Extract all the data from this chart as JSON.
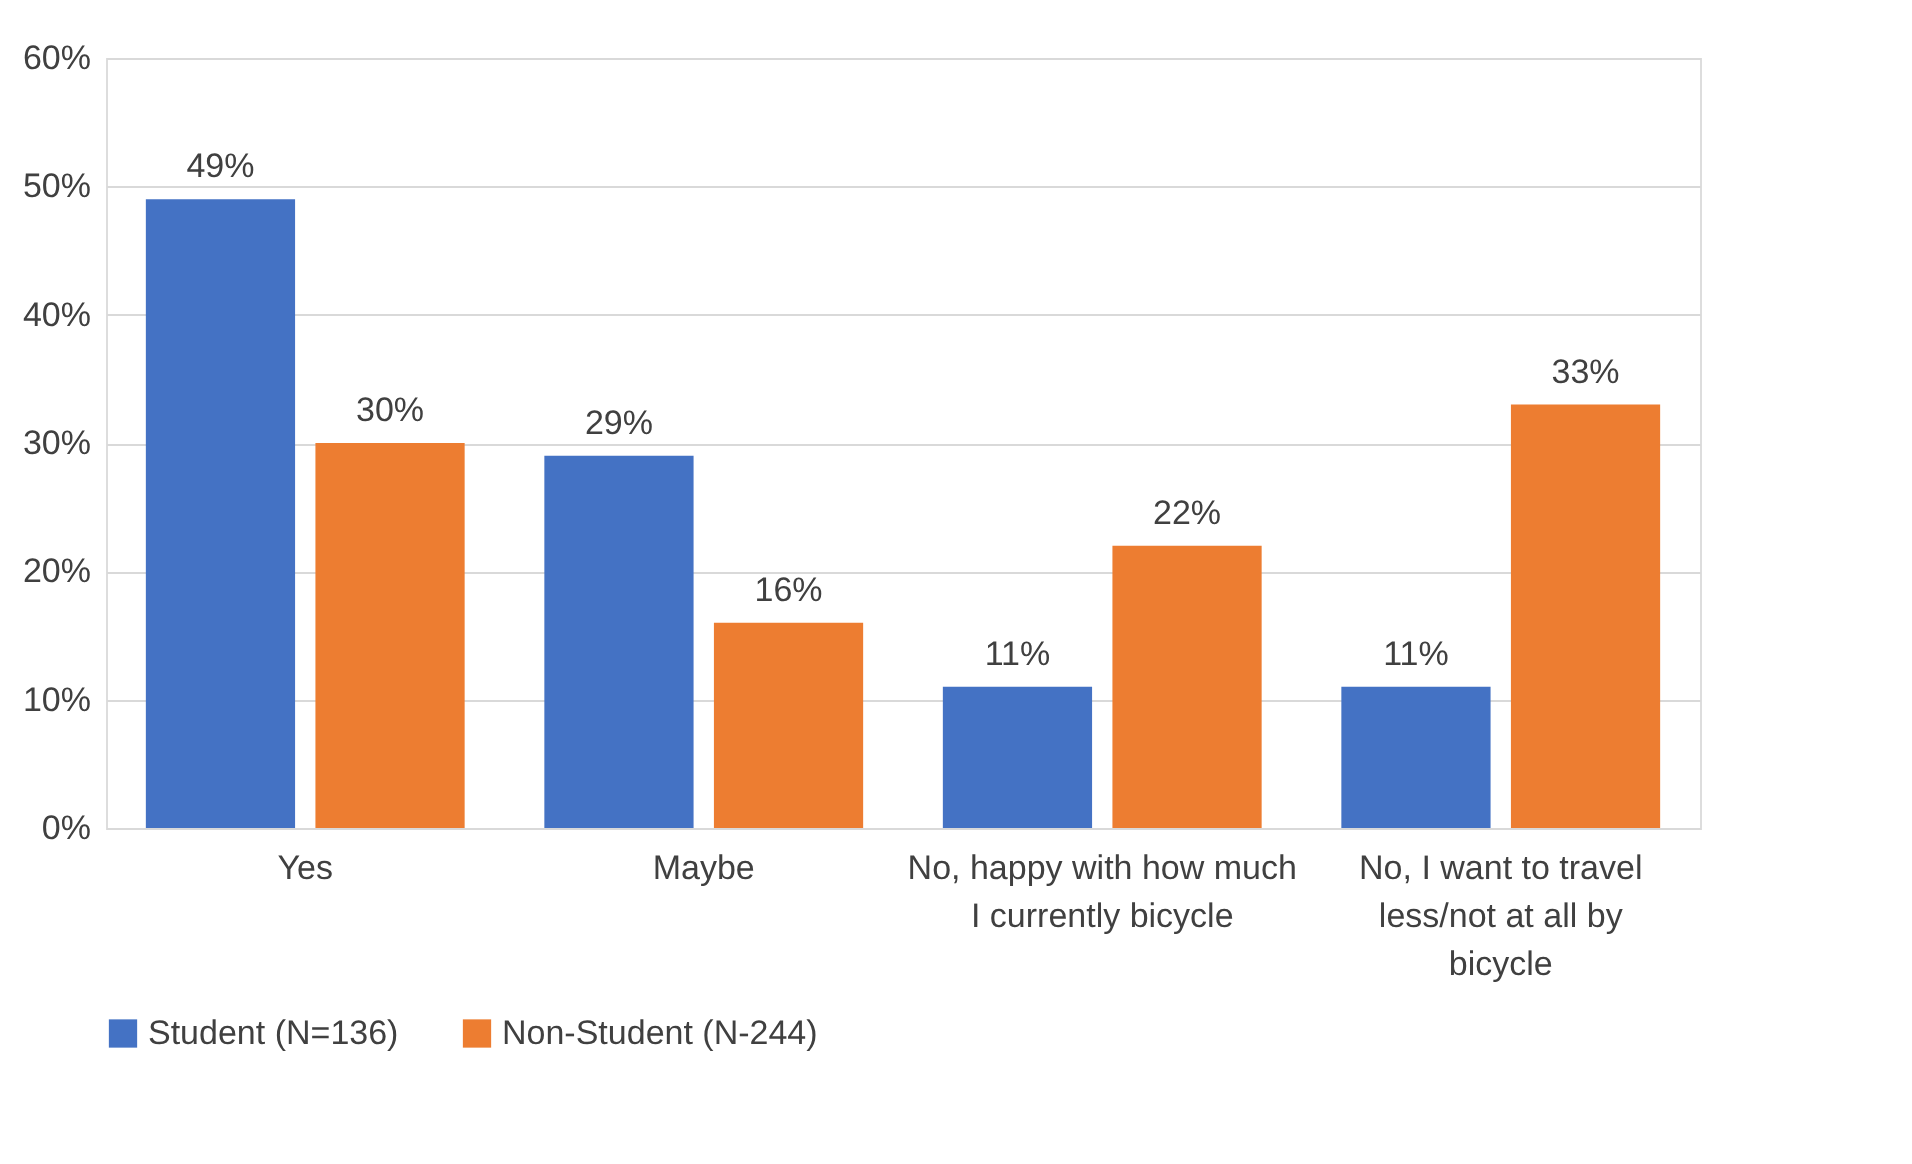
{
  "chart_data": {
    "type": "bar",
    "categories": [
      "Yes",
      "Maybe",
      "No, happy with how much I currently bicycle",
      "No, I want to travel less/not at all by bicycle"
    ],
    "series": [
      {
        "name": "Student (N=136)",
        "color": "#4472c4",
        "values": [
          49,
          29,
          11,
          11
        ],
        "value_labels": [
          "49%",
          "29%",
          "11%",
          "11%"
        ]
      },
      {
        "name": "Non-Student (N-244)",
        "color": "#ed7d31",
        "values": [
          30,
          16,
          22,
          33
        ],
        "value_labels": [
          "30%",
          "16%",
          "22%",
          "33%"
        ]
      }
    ],
    "ylim": [
      0,
      60
    ],
    "yticks": [
      {
        "value": 0,
        "label": "0%"
      },
      {
        "value": 10,
        "label": "10%"
      },
      {
        "value": 20,
        "label": "20%"
      },
      {
        "value": 30,
        "label": "30%"
      },
      {
        "value": 40,
        "label": "40%"
      },
      {
        "value": 50,
        "label": "50%"
      },
      {
        "value": 60,
        "label": "60%"
      }
    ],
    "grid": "y",
    "legend": "bottom"
  }
}
